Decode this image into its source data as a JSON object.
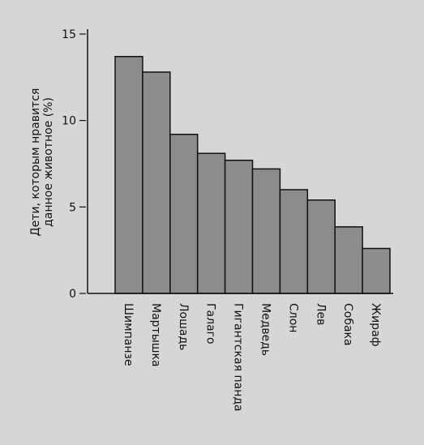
{
  "chart_data": {
    "type": "bar",
    "y_label": [
      "Дети, которым нравится",
      "данное животное (%)"
    ],
    "categories": [
      "Шимпанзе",
      "Мартышка",
      "Лошадь",
      "Галаго",
      "Гигантская панда",
      "Медведь",
      "Слон",
      "Лев",
      "Собака",
      "Жираф"
    ],
    "values": [
      13.7,
      12.8,
      9.2,
      8.1,
      7.7,
      7.2,
      6.0,
      5.4,
      3.85,
      2.6
    ],
    "color": "#8c8c8c",
    "ylim": [
      0,
      15
    ],
    "yticks": [
      0,
      5,
      10,
      15
    ],
    "grid": false
  }
}
